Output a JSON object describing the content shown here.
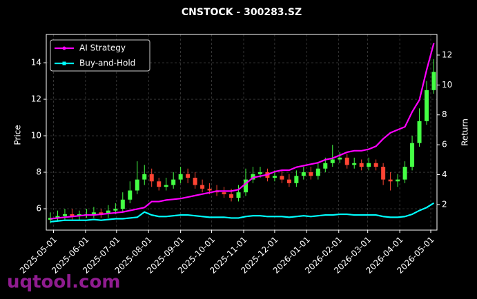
{
  "chart_data": {
    "type": "candlestick",
    "title": "CNSTOCK - 300283.SZ",
    "y_label": "Price",
    "y2_label": "Return",
    "watermark": "uqtool.com",
    "up_color": "#44ff44",
    "down_color": "#ff4433",
    "grid": true,
    "legend": "upper left",
    "xlim": [
      "2025-04-24",
      "2026-05-07"
    ],
    "xticks": [
      "2025-05-01",
      "2025-06-01",
      "2025-07-01",
      "2025-08-01",
      "2025-09-01",
      "2025-10-01",
      "2025-11-01",
      "2025-12-01",
      "2026-01-01",
      "2026-02-01",
      "2026-03-01",
      "2026-04-01",
      "2026-05-01"
    ],
    "ylim": [
      4.83,
      15.55
    ],
    "yticks": [
      6,
      8,
      10,
      12,
      14
    ],
    "y2lim": [
      0.29,
      13.38
    ],
    "y2ticks": [
      2,
      4,
      6,
      8,
      10,
      12
    ],
    "x": [
      "2025-04-28",
      "2025-05-05",
      "2025-05-12",
      "2025-05-19",
      "2025-05-26",
      "2025-06-02",
      "2025-06-09",
      "2025-06-16",
      "2025-06-23",
      "2025-06-30",
      "2025-07-07",
      "2025-07-14",
      "2025-07-21",
      "2025-07-28",
      "2025-08-04",
      "2025-08-11",
      "2025-08-18",
      "2025-08-25",
      "2025-09-01",
      "2025-09-08",
      "2025-09-15",
      "2025-09-22",
      "2025-09-29",
      "2025-10-06",
      "2025-10-13",
      "2025-10-20",
      "2025-10-27",
      "2025-11-03",
      "2025-11-10",
      "2025-11-17",
      "2025-11-24",
      "2025-12-01",
      "2025-12-08",
      "2025-12-15",
      "2025-12-22",
      "2025-12-29",
      "2026-01-05",
      "2026-01-12",
      "2026-01-19",
      "2026-01-26",
      "2026-02-02",
      "2026-02-09",
      "2026-02-16",
      "2026-02-23",
      "2026-03-02",
      "2026-03-09",
      "2026-03-16",
      "2026-03-23",
      "2026-03-30",
      "2026-04-06",
      "2026-04-13",
      "2026-04-20",
      "2026-04-27",
      "2026-05-04"
    ],
    "open": [
      5.4,
      5.5,
      5.6,
      5.7,
      5.6,
      5.7,
      5.7,
      5.8,
      5.7,
      5.9,
      6.0,
      6.5,
      7.0,
      7.6,
      7.9,
      7.5,
      7.2,
      7.3,
      7.6,
      7.9,
      7.7,
      7.3,
      7.1,
      7.0,
      6.9,
      6.8,
      6.6,
      6.9,
      7.6,
      7.9,
      8.0,
      7.7,
      7.8,
      7.6,
      7.4,
      7.8,
      8.0,
      7.8,
      8.2,
      8.5,
      8.7,
      8.8,
      8.4,
      8.5,
      8.3,
      8.5,
      8.3,
      7.6,
      7.5,
      7.6,
      8.3,
      9.6,
      10.8,
      12.5
    ],
    "high": [
      5.8,
      5.9,
      6.0,
      6.0,
      5.9,
      6.0,
      6.1,
      6.0,
      6.2,
      6.3,
      6.9,
      7.5,
      8.6,
      8.4,
      8.2,
      7.7,
      7.7,
      8.0,
      8.3,
      8.2,
      8.0,
      7.6,
      7.4,
      7.3,
      7.2,
      7.1,
      7.3,
      8.2,
      8.3,
      8.3,
      8.2,
      8.1,
      8.1,
      7.9,
      8.1,
      8.3,
      8.3,
      8.5,
      8.8,
      9.5,
      9.1,
      9.0,
      8.8,
      8.7,
      8.8,
      8.7,
      8.5,
      8.0,
      7.9,
      8.6,
      10.0,
      11.5,
      13.0,
      14.2
    ],
    "low": [
      5.2,
      5.3,
      5.4,
      5.4,
      5.4,
      5.5,
      5.5,
      5.5,
      5.5,
      5.7,
      5.8,
      6.3,
      6.8,
      7.3,
      7.2,
      7.0,
      7.0,
      7.1,
      7.4,
      7.4,
      7.1,
      6.9,
      6.8,
      6.7,
      6.6,
      6.4,
      6.4,
      6.7,
      7.4,
      7.7,
      7.5,
      7.5,
      7.4,
      7.2,
      7.2,
      7.6,
      7.6,
      7.6,
      8.0,
      8.3,
      8.5,
      8.2,
      8.2,
      8.1,
      8.1,
      8.1,
      7.3,
      7.0,
      7.2,
      7.4,
      8.1,
      9.4,
      10.6,
      12.3
    ],
    "close": [
      5.5,
      5.6,
      5.7,
      5.6,
      5.7,
      5.7,
      5.8,
      5.7,
      5.9,
      6.0,
      6.5,
      7.0,
      7.6,
      7.9,
      7.5,
      7.2,
      7.3,
      7.6,
      7.9,
      7.7,
      7.3,
      7.1,
      7.0,
      6.9,
      6.8,
      6.6,
      6.9,
      7.6,
      7.9,
      8.0,
      7.7,
      7.8,
      7.6,
      7.4,
      7.8,
      8.0,
      7.8,
      8.2,
      8.5,
      8.7,
      8.8,
      8.4,
      8.5,
      8.3,
      8.5,
      8.3,
      7.6,
      7.5,
      7.6,
      8.3,
      9.6,
      10.8,
      12.5,
      13.5
    ],
    "series": [
      {
        "name": "AI Strategy",
        "color": "#ff00ff",
        "axis": "y2",
        "values": [
          1.05,
          1.1,
          1.15,
          1.2,
          1.25,
          1.3,
          1.3,
          1.35,
          1.4,
          1.45,
          1.5,
          1.6,
          1.7,
          1.8,
          2.2,
          2.2,
          2.3,
          2.35,
          2.4,
          2.5,
          2.6,
          2.7,
          2.8,
          2.9,
          2.9,
          2.9,
          3.0,
          3.4,
          3.8,
          3.9,
          4.0,
          4.2,
          4.3,
          4.3,
          4.5,
          4.6,
          4.7,
          4.8,
          5.0,
          5.1,
          5.3,
          5.5,
          5.6,
          5.6,
          5.7,
          5.9,
          6.4,
          6.8,
          7.0,
          7.2,
          8.2,
          9.0,
          11.0,
          12.8
        ]
      },
      {
        "name": "Buy-and-Hold",
        "color": "#00ffff",
        "axis": "y2",
        "values": [
          0.85,
          0.9,
          0.95,
          0.95,
          0.95,
          0.95,
          1.0,
          0.95,
          1.0,
          1.05,
          1.05,
          1.1,
          1.15,
          1.5,
          1.3,
          1.2,
          1.2,
          1.25,
          1.3,
          1.3,
          1.25,
          1.2,
          1.15,
          1.15,
          1.15,
          1.1,
          1.1,
          1.2,
          1.25,
          1.25,
          1.2,
          1.2,
          1.2,
          1.15,
          1.2,
          1.25,
          1.2,
          1.25,
          1.3,
          1.3,
          1.35,
          1.35,
          1.3,
          1.3,
          1.3,
          1.3,
          1.2,
          1.15,
          1.15,
          1.2,
          1.35,
          1.6,
          1.8,
          2.1
        ]
      }
    ]
  }
}
